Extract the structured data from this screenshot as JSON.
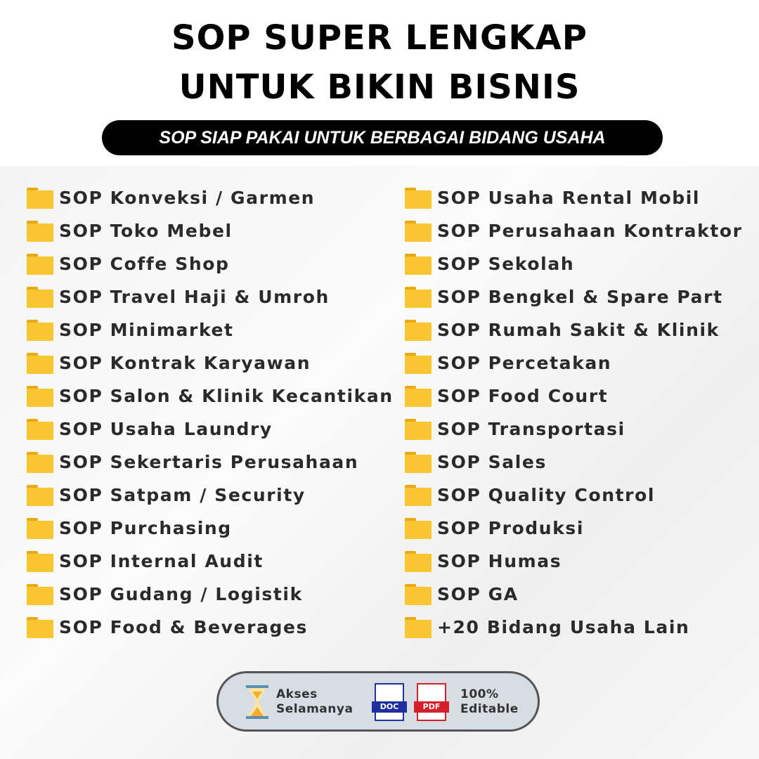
{
  "header": {
    "title_line1": "SOP SUPER LENGKAP",
    "title_line2": "UNTUK BIKIN BISNIS",
    "subtitle": "SOP SIAP PAKAI UNTUK BERBAGAI BIDANG USAHA"
  },
  "left_items": [
    "SOP Konveksi / Garmen",
    "SOP Toko Mebel",
    "SOP Coffe Shop",
    "SOP Travel Haji & Umroh",
    "SOP Minimarket",
    "SOP Kontrak Karyawan",
    "SOP Salon & Klinik Kecantikan",
    "SOP Usaha Laundry",
    "SOP Sekertaris Perusahaan",
    "SOP Satpam / Security",
    "SOP Purchasing",
    "SOP Internal Audit",
    "SOP Gudang / Logistik",
    "SOP Food & Beverages"
  ],
  "right_items": [
    "SOP Usaha Rental Mobil",
    "SOP Perusahaan Kontraktor",
    "SOP Sekolah",
    "SOP Bengkel & Spare Part",
    "SOP Rumah Sakit & Klinik",
    "SOP Percetakan",
    "SOP Food Court",
    "SOP Transportasi",
    "SOP Sales",
    "SOP Quality Control",
    "SOP Produksi",
    "SOP Humas",
    "SOP GA",
    "+20 Bidang Usaha Lain"
  ],
  "badge": {
    "access_line1": "Akses",
    "access_line2": "Selamanya",
    "doc_label": "DOC",
    "pdf_label": "PDF",
    "edit_line1": "100%",
    "edit_line2": "Editable"
  },
  "icons": {
    "item": "folder-icon",
    "access": "hourglass-icon"
  },
  "colors": {
    "folder": "#f9c531",
    "doc": "#1e2fa0",
    "pdf": "#d4202a"
  }
}
